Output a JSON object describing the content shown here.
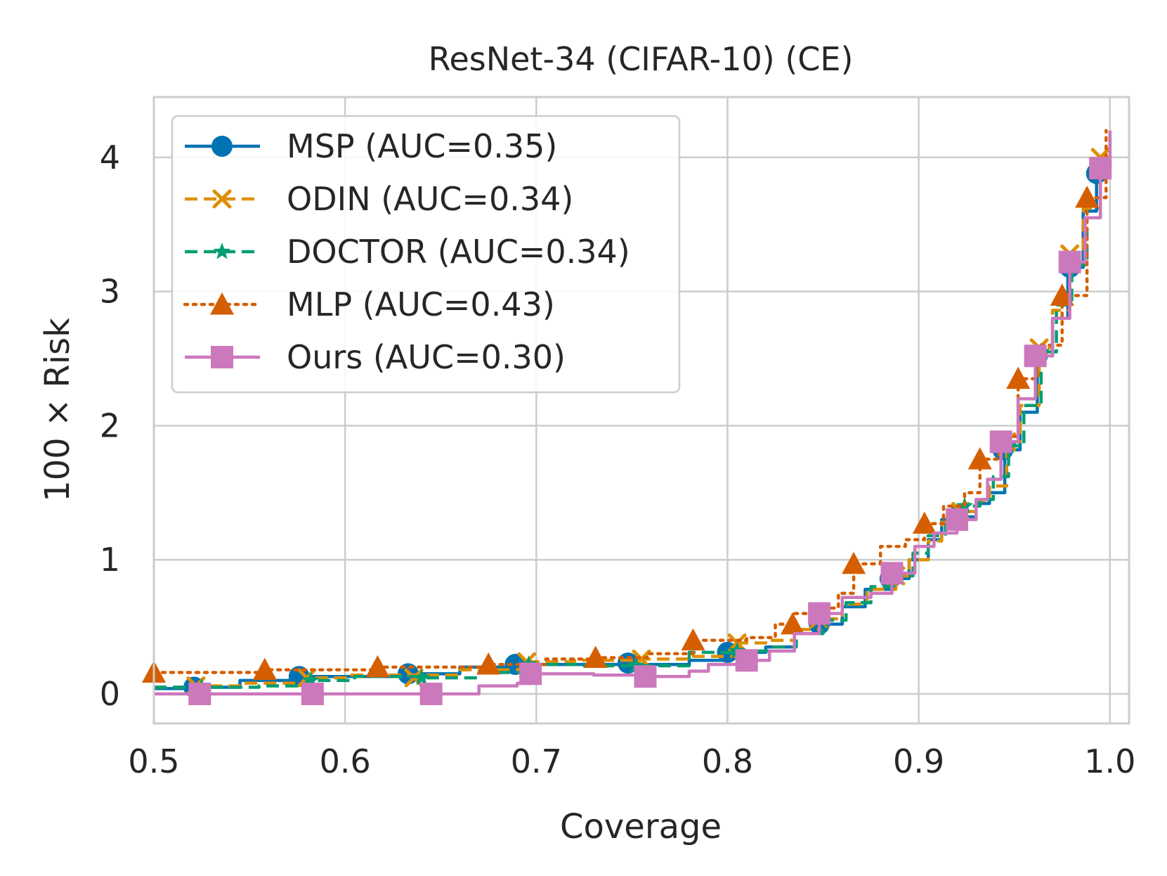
{
  "chart_data": {
    "type": "line",
    "title": "ResNet-34 (CIFAR-10) (CE)",
    "xlabel": "Coverage",
    "ylabel": "100 × Risk",
    "xlim": [
      0.5,
      1.01
    ],
    "ylim": [
      -0.22,
      4.45
    ],
    "grid": true,
    "legend_position": "upper-left",
    "xticks": [
      {
        "value": 0.5,
        "label": "0.5"
      },
      {
        "value": 0.6,
        "label": "0.6"
      },
      {
        "value": 0.7,
        "label": "0.7"
      },
      {
        "value": 0.8,
        "label": "0.8"
      },
      {
        "value": 0.9,
        "label": "0.9"
      },
      {
        "value": 1.0,
        "label": "1.0"
      }
    ],
    "yticks": [
      {
        "value": 0,
        "label": "0"
      },
      {
        "value": 1,
        "label": "1"
      },
      {
        "value": 2,
        "label": "2"
      },
      {
        "value": 3,
        "label": "3"
      },
      {
        "value": 4,
        "label": "4"
      }
    ],
    "series": [
      {
        "name": "MSP (AUC=0.35)",
        "color": "#0173b2",
        "dash": "solid",
        "marker": "circle",
        "x": [
          0.5,
          0.52,
          0.545,
          0.575,
          0.6,
          0.635,
          0.66,
          0.69,
          0.72,
          0.748,
          0.78,
          0.8,
          0.82,
          0.835,
          0.848,
          0.86,
          0.872,
          0.885,
          0.895,
          0.905,
          0.912,
          0.92,
          0.93,
          0.937,
          0.945,
          0.953,
          0.962,
          0.97,
          0.978,
          0.986,
          0.993,
          1.0
        ],
        "y": [
          0.04,
          0.05,
          0.1,
          0.13,
          0.13,
          0.15,
          0.2,
          0.22,
          0.22,
          0.22,
          0.25,
          0.31,
          0.35,
          0.45,
          0.52,
          0.65,
          0.78,
          0.86,
          1.0,
          1.15,
          1.3,
          1.32,
          1.42,
          1.5,
          1.82,
          2.1,
          2.52,
          2.8,
          3.18,
          3.6,
          3.88,
          4.15
        ],
        "markers_x": [
          0.521,
          0.576,
          0.633,
          0.689,
          0.748,
          0.8,
          0.848,
          0.885,
          0.92,
          0.944,
          0.962,
          0.979,
          0.993
        ],
        "markers_y": [
          0.05,
          0.13,
          0.15,
          0.22,
          0.23,
          0.31,
          0.52,
          0.86,
          1.32,
          1.82,
          2.52,
          3.18,
          3.88
        ]
      },
      {
        "name": "ODIN (AUC=0.34)",
        "color": "#de8f05",
        "dash": "dashed",
        "marker": "x",
        "x": [
          0.5,
          0.52,
          0.545,
          0.58,
          0.6,
          0.635,
          0.66,
          0.695,
          0.72,
          0.755,
          0.78,
          0.805,
          0.82,
          0.835,
          0.848,
          0.86,
          0.873,
          0.888,
          0.895,
          0.905,
          0.912,
          0.922,
          0.93,
          0.937,
          0.946,
          0.953,
          0.963,
          0.97,
          0.979,
          0.986,
          0.995,
          1.0
        ],
        "y": [
          0.05,
          0.06,
          0.08,
          0.12,
          0.14,
          0.14,
          0.18,
          0.24,
          0.25,
          0.26,
          0.28,
          0.38,
          0.4,
          0.48,
          0.56,
          0.67,
          0.78,
          0.88,
          1.0,
          1.14,
          1.28,
          1.36,
          1.44,
          1.55,
          1.88,
          2.15,
          2.58,
          2.86,
          3.28,
          3.62,
          4.0,
          4.22
        ],
        "markers_x": [
          0.522,
          0.58,
          0.636,
          0.695,
          0.755,
          0.805,
          0.848,
          0.888,
          0.922,
          0.946,
          0.963,
          0.979,
          0.995
        ],
        "markers_y": [
          0.06,
          0.12,
          0.12,
          0.24,
          0.26,
          0.38,
          0.56,
          0.88,
          1.36,
          1.88,
          2.58,
          3.28,
          4.0
        ]
      },
      {
        "name": "DOCTOR (AUC=0.34)",
        "color": "#029e73",
        "dash": "dashed",
        "marker": "star",
        "x": [
          0.5,
          0.53,
          0.555,
          0.58,
          0.605,
          0.64,
          0.67,
          0.7,
          0.725,
          0.75,
          0.78,
          0.805,
          0.822,
          0.836,
          0.85,
          0.862,
          0.875,
          0.887,
          0.897,
          0.905,
          0.914,
          0.924,
          0.932,
          0.939,
          0.947,
          0.955,
          0.964,
          0.972,
          0.98,
          0.988,
          0.995,
          1.0
        ],
        "y": [
          0.05,
          0.05,
          0.06,
          0.1,
          0.13,
          0.12,
          0.16,
          0.22,
          0.21,
          0.21,
          0.31,
          0.32,
          0.35,
          0.45,
          0.55,
          0.68,
          0.8,
          0.88,
          1.05,
          1.18,
          1.3,
          1.4,
          1.45,
          1.62,
          1.85,
          2.15,
          2.55,
          2.9,
          3.2,
          3.55,
          3.92,
          4.18
        ],
        "markers_x": [
          0.525,
          0.582,
          0.64,
          0.696,
          0.752,
          0.805,
          0.85,
          0.887,
          0.924,
          0.947,
          0.964,
          0.98,
          0.995
        ],
        "markers_y": [
          0.05,
          0.1,
          0.12,
          0.22,
          0.21,
          0.32,
          0.55,
          0.88,
          1.4,
          1.85,
          2.55,
          3.2,
          3.92
        ]
      },
      {
        "name": "MLP (AUC=0.43)",
        "color": "#d55e00",
        "dash": "dotted",
        "marker": "triangle",
        "x": [
          0.5,
          0.53,
          0.558,
          0.59,
          0.618,
          0.645,
          0.675,
          0.705,
          0.73,
          0.758,
          0.782,
          0.81,
          0.825,
          0.835,
          0.848,
          0.858,
          0.866,
          0.88,
          0.893,
          0.903,
          0.913,
          0.924,
          0.932,
          0.942,
          0.952,
          0.962,
          0.975,
          0.988,
          0.998
        ],
        "y": [
          0.16,
          0.16,
          0.18,
          0.18,
          0.2,
          0.2,
          0.22,
          0.26,
          0.27,
          0.3,
          0.4,
          0.42,
          0.52,
          0.6,
          0.64,
          0.75,
          0.97,
          1.1,
          1.15,
          1.27,
          1.4,
          1.5,
          1.75,
          1.92,
          2.35,
          2.6,
          2.97,
          3.7,
          4.2
        ],
        "markers_x": [
          0.5,
          0.558,
          0.617,
          0.675,
          0.731,
          0.782,
          0.834,
          0.866,
          0.903,
          0.932,
          0.952,
          0.975,
          0.988
        ],
        "markers_y": [
          0.16,
          0.18,
          0.2,
          0.22,
          0.27,
          0.4,
          0.52,
          0.97,
          1.27,
          1.75,
          2.35,
          2.97,
          3.7
        ]
      },
      {
        "name": "Ours (AUC=0.30)",
        "color": "#cc78bc",
        "dash": "solid",
        "marker": "square",
        "x": [
          0.5,
          0.524,
          0.555,
          0.583,
          0.61,
          0.645,
          0.67,
          0.69,
          0.697,
          0.73,
          0.757,
          0.78,
          0.79,
          0.81,
          0.822,
          0.835,
          0.848,
          0.86,
          0.875,
          0.886,
          0.898,
          0.908,
          0.92,
          0.93,
          0.936,
          0.943,
          0.952,
          0.961,
          0.97,
          0.979,
          0.987,
          0.995,
          1.0
        ],
        "y": [
          0.0,
          0.0,
          0.0,
          0.0,
          0.0,
          0.0,
          0.06,
          0.08,
          0.15,
          0.14,
          0.13,
          0.17,
          0.22,
          0.25,
          0.32,
          0.45,
          0.6,
          0.72,
          0.75,
          0.9,
          1.1,
          1.2,
          1.3,
          1.45,
          1.6,
          1.88,
          2.2,
          2.52,
          2.8,
          3.22,
          3.55,
          3.92,
          4.2
        ],
        "markers_x": [
          0.524,
          0.583,
          0.645,
          0.697,
          0.757,
          0.81,
          0.848,
          0.886,
          0.92,
          0.943,
          0.961,
          0.979,
          0.995
        ],
        "markers_y": [
          0.0,
          0.0,
          0.0,
          0.15,
          0.13,
          0.25,
          0.6,
          0.9,
          1.3,
          1.88,
          2.52,
          3.22,
          3.92
        ]
      }
    ]
  }
}
